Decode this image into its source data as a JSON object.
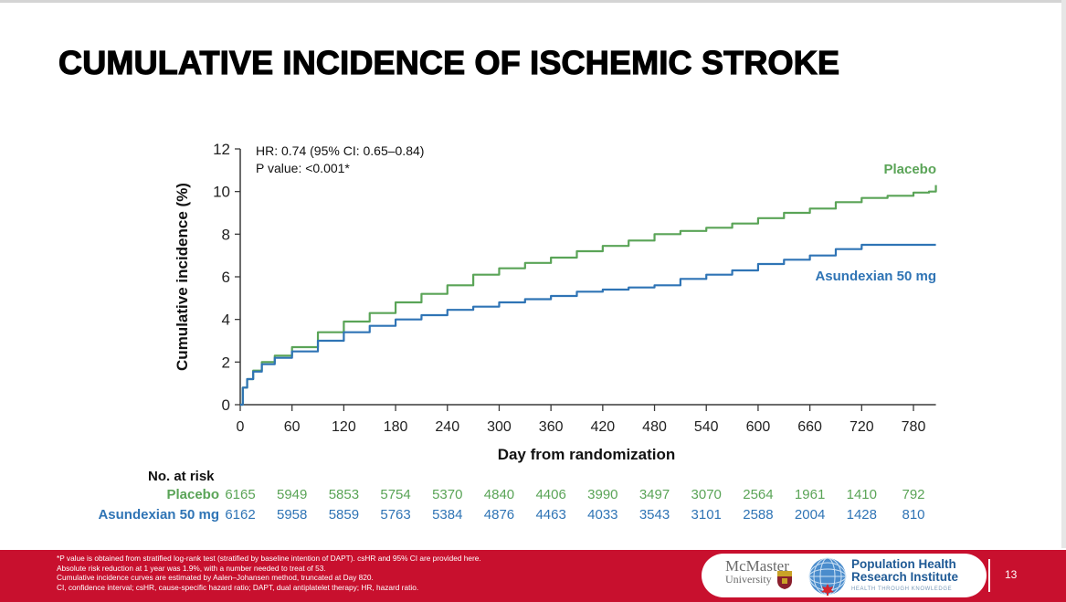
{
  "slide": {
    "title": "CUMULATIVE INCIDENCE OF ISCHEMIC STROKE",
    "page_number": "13",
    "footnotes": [
      "*P value is obtained from stratified log-rank test (stratified by baseline intention of DAPT). csHR and 95% CI are provided here.",
      "Absolute risk reduction at 1 year was 1.9%, with a number needed to treat of 53.",
      "Cumulative incidence curves are estimated by Aalen–Johansen method, truncated at Day 820.",
      "CI, confidence interval; csHR, cause-specific hazard ratio; DAPT, dual antiplatelet therapy; HR, hazard ratio."
    ],
    "logos": {
      "mcmaster_line1": "McMaster",
      "mcmaster_line2": "University",
      "phri_line1": "Population Health",
      "phri_line2": "Research Institute",
      "phri_tagline": "HEALTH THROUGH KNOWLEDGE"
    },
    "colors": {
      "placebo": "#5aa457",
      "asundexian": "#2f74b5",
      "footer": "#c8102e"
    }
  },
  "chart_data": {
    "type": "line",
    "title": "CUMULATIVE INCIDENCE OF ISCHEMIC STROKE",
    "xlabel": "Day from randomization",
    "ylabel": "Cumulative incidence (%)",
    "xlim": [
      0,
      806
    ],
    "ylim": [
      0,
      12
    ],
    "xticks": [
      0,
      60,
      120,
      180,
      240,
      300,
      360,
      420,
      480,
      540,
      600,
      660,
      720,
      780
    ],
    "yticks": [
      0,
      2,
      4,
      6,
      8,
      10,
      12
    ],
    "grid": false,
    "annotations": [
      "HR: 0.74 (95% CI: 0.65–0.84)",
      "P value: <0.001*"
    ],
    "series": [
      {
        "name": "Placebo",
        "label": "Placebo",
        "x": [
          0,
          3,
          8,
          15,
          25,
          40,
          60,
          90,
          120,
          150,
          180,
          210,
          240,
          270,
          300,
          330,
          360,
          390,
          420,
          450,
          480,
          510,
          540,
          570,
          600,
          630,
          660,
          690,
          720,
          750,
          780,
          798,
          806
        ],
        "values": [
          0,
          0.8,
          1.2,
          1.6,
          2.0,
          2.3,
          2.7,
          3.4,
          3.9,
          4.3,
          4.8,
          5.2,
          5.6,
          6.1,
          6.4,
          6.65,
          6.9,
          7.2,
          7.45,
          7.7,
          8.0,
          8.15,
          8.3,
          8.5,
          8.75,
          9.0,
          9.2,
          9.5,
          9.7,
          9.8,
          9.95,
          10.0,
          10.3
        ]
      },
      {
        "name": "Asundexian 50 mg",
        "label": "Asundexian 50 mg",
        "x": [
          0,
          3,
          8,
          15,
          25,
          40,
          60,
          90,
          120,
          150,
          180,
          210,
          240,
          270,
          300,
          330,
          360,
          390,
          420,
          450,
          480,
          510,
          540,
          570,
          600,
          630,
          660,
          690,
          720,
          750,
          780,
          806
        ],
        "values": [
          0,
          0.8,
          1.2,
          1.55,
          1.9,
          2.2,
          2.5,
          3.0,
          3.4,
          3.7,
          4.0,
          4.2,
          4.45,
          4.6,
          4.8,
          4.95,
          5.1,
          5.3,
          5.4,
          5.5,
          5.6,
          5.9,
          6.1,
          6.3,
          6.6,
          6.8,
          7.0,
          7.3,
          7.5,
          7.5,
          7.5,
          7.5
        ]
      }
    ],
    "risk_table": {
      "title": "No. at risk",
      "days": [
        0,
        60,
        120,
        180,
        240,
        300,
        360,
        420,
        480,
        540,
        600,
        660,
        720,
        780
      ],
      "rows": [
        {
          "label": "Placebo",
          "values": [
            "6165",
            "5949",
            "5853",
            "5754",
            "5370",
            "4840",
            "4406",
            "3990",
            "3497",
            "3070",
            "2564",
            "1961",
            "1410",
            "792"
          ]
        },
        {
          "label": "Asundexian 50 mg",
          "values": [
            "6162",
            "5958",
            "5859",
            "5763",
            "5384",
            "4876",
            "4463",
            "4033",
            "3543",
            "3101",
            "2588",
            "2004",
            "1428",
            "810"
          ]
        }
      ]
    },
    "legend": "inline-right"
  }
}
